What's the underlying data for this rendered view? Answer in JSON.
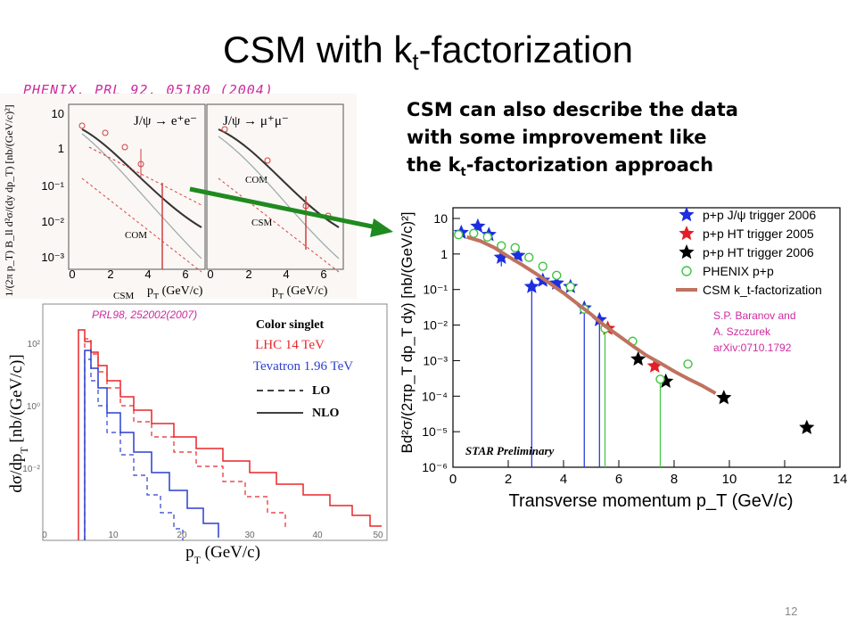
{
  "slide": {
    "title_main": "CSM with k",
    "title_sub": "t",
    "title_rest": "-factorization",
    "ref_phenix": "PHENIX, PRL 92, 05180 (2004)",
    "claim_line1": "CSM can also describe the data",
    "claim_line2": "with some improvement like",
    "claim_line3a": "the k",
    "claim_line3sub": "t",
    "claim_line3b": "-factorization approach",
    "page_number": "12"
  },
  "phenix_panels": {
    "left_channel": "J/ψ → e⁺e⁻",
    "right_channel": "J/ψ → μ⁺μ⁻",
    "label_com": "COM",
    "label_csm": "CSM",
    "xlabel": "p",
    "xlabel_sub": "T",
    "xlabel_unit": " (GeV/c)",
    "ylabel": "1/(2π p_T) B_ll d²σ/(dy dp_T) [nb/(GeV/c)²]",
    "xticks": [
      "0",
      "2",
      "4",
      "6"
    ],
    "yticks": [
      "10",
      "1",
      "10⁻¹",
      "10⁻²",
      "10⁻³"
    ]
  },
  "lhc_panel": {
    "ref": "PRL98, 252002(2007)",
    "legend_title": "Color singlet",
    "legend_lhc": "LHC 14 TeV",
    "legend_tev": "Tevatron 1.96 TeV",
    "legend_lo": "LO",
    "legend_nlo": "NLO",
    "ylabel": "dσ/dp",
    "ylabel_sub": "T",
    "ylabel_unit": " [nb/(GeV/c)]",
    "xlabel": "p",
    "xlabel_sub": "T",
    "xlabel_unit": " (GeV/c)",
    "xticks": [
      "0",
      "10",
      "20",
      "30",
      "40",
      "50"
    ],
    "yticks": [
      "10²",
      "10⁰",
      "10⁻²"
    ],
    "colors": {
      "lhc": "#e8262a",
      "tev": "#2b3fcf"
    }
  },
  "chart_data": {
    "type": "scatter",
    "xlabel": "Transverse momentum p_T (GeV/c)",
    "ylabel": "Bd²σ/(2πp_T dp_T dy) [nb/(GeV/c)²]",
    "xlim": [
      0,
      14
    ],
    "ylim": [
      1e-06,
      20
    ],
    "yscale": "log",
    "xticks": [
      "0",
      "2",
      "4",
      "6",
      "8",
      "10",
      "12",
      "14"
    ],
    "yticks": [
      "10",
      "1",
      "10⁻¹",
      "10⁻²",
      "10⁻³",
      "10⁻⁴",
      "10⁻⁵",
      "10⁻⁶"
    ],
    "watermark": "STAR Preliminary",
    "reference": [
      "S.P. Baranov and",
      "A. Szczurek",
      "arXiv:0710.1792"
    ],
    "legend_position": "top-right",
    "series": [
      {
        "name": "p+p J/ψ trigger 2006",
        "marker": "star",
        "color": "#1c2ee0",
        "x": [
          0.3,
          0.9,
          1.3,
          1.75,
          2.35,
          2.85,
          3.25,
          3.75,
          4.25,
          4.75,
          5.3
        ],
        "y": [
          4.0,
          6.0,
          3.5,
          0.8,
          0.9,
          0.12,
          0.18,
          0.15,
          0.12,
          0.03,
          0.014
        ],
        "err_lo": [
          null,
          null,
          null,
          0.45,
          null,
          1e-06,
          null,
          null,
          null,
          1e-06,
          1e-06
        ]
      },
      {
        "name": "p+p HT trigger 2005",
        "marker": "star",
        "color": "#e21f26",
        "x": [
          5.6,
          7.3
        ],
        "y": [
          0.008,
          0.0007
        ]
      },
      {
        "name": "p+p HT trigger 2006",
        "marker": "star",
        "color": "#000000",
        "x": [
          6.7,
          7.7,
          9.8,
          12.8
        ],
        "y": [
          0.0011,
          0.00026,
          9e-05,
          1.3e-05
        ]
      },
      {
        "name": "PHENIX p+p",
        "marker": "circle",
        "color": "#3ec43e",
        "x": [
          0.2,
          0.75,
          1.25,
          1.75,
          2.25,
          2.75,
          3.25,
          3.75,
          4.25,
          4.75,
          5.5,
          6.5,
          7.5,
          8.5
        ],
        "y": [
          3.5,
          3.8,
          3.0,
          1.7,
          1.5,
          0.8,
          0.45,
          0.25,
          0.12,
          0.028,
          0.008,
          0.0035,
          0.0003,
          0.0008
        ],
        "err_lo": [
          null,
          null,
          null,
          null,
          null,
          null,
          null,
          null,
          null,
          null,
          1e-06,
          null,
          1e-06,
          null
        ]
      },
      {
        "name": "CSM k_t-factorization",
        "marker": "line",
        "color": "#bf7260",
        "x": [
          0.5,
          1.0,
          1.5,
          2.0,
          2.5,
          3.0,
          3.5,
          4.0,
          4.5,
          5.0,
          5.5,
          6.0,
          6.5,
          7.0,
          7.5,
          8.0,
          8.5,
          9.0,
          9.5
        ],
        "y": [
          3.0,
          2.3,
          1.5,
          0.85,
          0.5,
          0.28,
          0.15,
          0.08,
          0.04,
          0.02,
          0.0095,
          0.005,
          0.0026,
          0.0014,
          0.00085,
          0.0005,
          0.00031,
          0.0002,
          0.00012
        ]
      }
    ]
  }
}
